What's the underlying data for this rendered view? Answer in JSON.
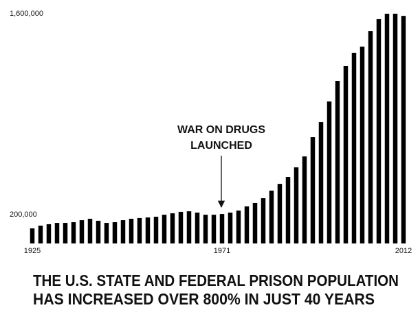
{
  "chart_data": {
    "type": "bar",
    "title": [
      "THE U.S. STATE AND FEDERAL PRISON POPULATION",
      "HAS INCREASED OVER 800% IN JUST 40 YEARS"
    ],
    "annotation": {
      "text": [
        "WAR ON DRUGS",
        "LAUNCHED"
      ],
      "category_index": 23
    },
    "categories": [
      "1925",
      null,
      null,
      null,
      null,
      null,
      null,
      null,
      null,
      null,
      null,
      null,
      null,
      null,
      null,
      null,
      null,
      null,
      null,
      null,
      null,
      null,
      null,
      "1971",
      null,
      null,
      null,
      null,
      null,
      null,
      null,
      null,
      null,
      null,
      null,
      null,
      null,
      null,
      null,
      null,
      null,
      null,
      null,
      null,
      null,
      "2012"
    ],
    "values": [
      105000,
      124000,
      134000,
      143000,
      143000,
      148000,
      162000,
      172000,
      158000,
      143000,
      148000,
      162000,
      172000,
      177000,
      181000,
      186000,
      200000,
      210000,
      220000,
      224000,
      215000,
      200000,
      200000,
      205000,
      215000,
      229000,
      258000,
      282000,
      315000,
      368000,
      415000,
      463000,
      530000,
      606000,
      740000,
      845000,
      989000,
      1132000,
      1237000,
      1328000,
      1371000,
      1480000,
      1562000,
      1600000,
      1600000,
      1585000
    ],
    "color": "#000000",
    "ylim": [
      0,
      1600000
    ],
    "yticks": [
      {
        "value": 200000,
        "label": "200,000"
      },
      {
        "value": 1600000,
        "label": "1,600,000"
      }
    ]
  }
}
